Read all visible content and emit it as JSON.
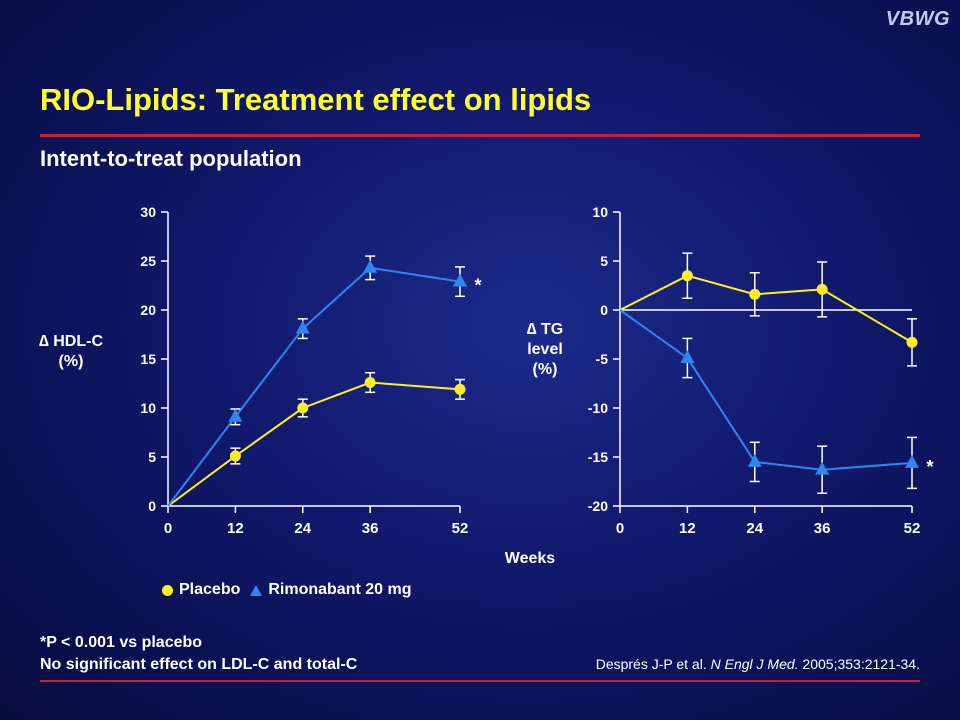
{
  "watermark": "VBWG",
  "title": "RIO-Lipids: Treatment effect on lipids",
  "subtitle": "Intent-to-treat population",
  "x_axis_title": "Weeks",
  "colors": {
    "placebo": "#ffee22",
    "rimonabant": "#2f86f0",
    "title": "#ffff33",
    "rule": "#c4233a"
  },
  "legend": [
    {
      "name": "Placebo",
      "marker": "circle"
    },
    {
      "name": "Rimonabant 20 mg",
      "marker": "triangle"
    }
  ],
  "footnote": {
    "line1": "*P < 0.001 vs placebo",
    "line2": "No significant effect on LDL-C and total-C"
  },
  "citation": {
    "authors": "Després J-P et al. ",
    "journal": "N Engl J Med.",
    "details": " 2005;353:2121-34."
  },
  "chart_data": [
    {
      "type": "line",
      "ylabel_lines": [
        "∆ HDL-C",
        "(%)"
      ],
      "xlabel": "Weeks",
      "x": [
        0,
        12,
        24,
        36,
        52
      ],
      "xticks": [
        "0",
        "12",
        "24",
        "36",
        "52"
      ],
      "ylim": [
        0,
        30
      ],
      "yticks": [
        "0",
        "5",
        "10",
        "15",
        "20",
        "25",
        "30"
      ],
      "series": [
        {
          "name": "Placebo",
          "values": [
            0,
            5.1,
            10.0,
            12.6,
            11.9
          ],
          "errors": [
            0,
            0.8,
            0.9,
            1.0,
            1.0
          ]
        },
        {
          "name": "Rimonabant 20 mg",
          "values": [
            0,
            9.1,
            18.1,
            24.3,
            22.9
          ],
          "errors": [
            0,
            0.8,
            1.0,
            1.2,
            1.5
          ]
        }
      ],
      "annotations": [
        {
          "text": "*",
          "series": "Rimonabant 20 mg",
          "x": 52
        }
      ]
    },
    {
      "type": "line",
      "ylabel_lines": [
        "∆ TG",
        "level",
        "(%)"
      ],
      "xlabel": "Weeks",
      "x": [
        0,
        12,
        24,
        36,
        52
      ],
      "xticks": [
        "0",
        "12",
        "24",
        "36",
        "52"
      ],
      "ylim": [
        -20,
        10
      ],
      "yticks": [
        "-20",
        "-15",
        "-10",
        "-5",
        "0",
        "5",
        "10"
      ],
      "series": [
        {
          "name": "Placebo",
          "values": [
            0,
            3.5,
            1.6,
            2.1,
            -3.3
          ],
          "errors": [
            0,
            2.3,
            2.2,
            2.8,
            2.4
          ]
        },
        {
          "name": "Rimonabant 20 mg",
          "values": [
            0,
            -4.9,
            -15.5,
            -16.3,
            -15.6
          ],
          "errors": [
            0,
            2.0,
            2.0,
            2.4,
            2.6
          ]
        }
      ],
      "annotations": [
        {
          "text": "*",
          "series": "Rimonabant 20 mg",
          "x": 52
        }
      ]
    }
  ]
}
